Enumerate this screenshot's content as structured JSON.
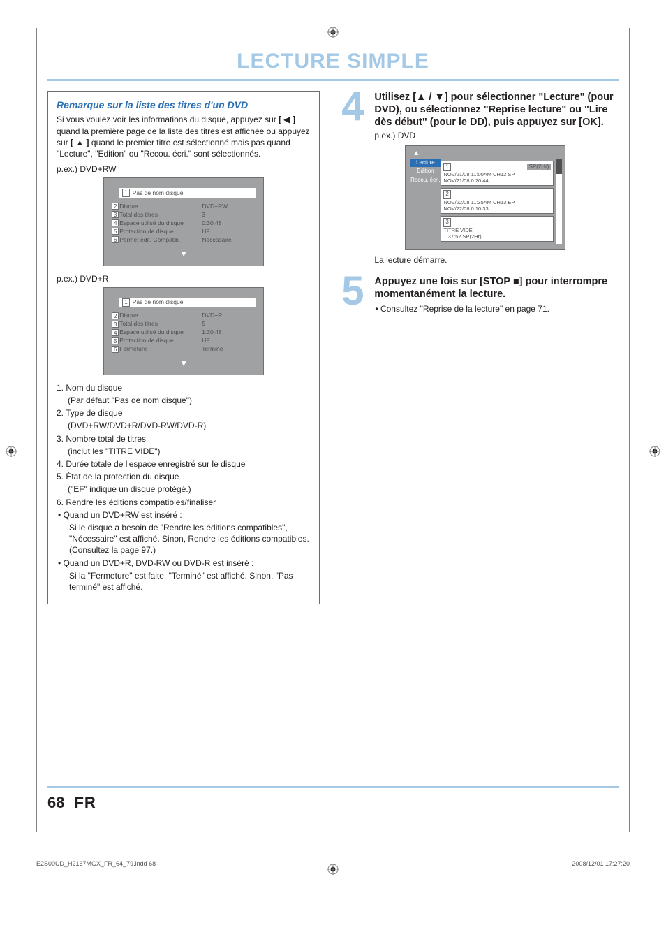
{
  "section_title": "LECTURE SIMPLE",
  "page_number": "68",
  "page_lang": "FR",
  "print_footer_left": "E2S00UD_H2167MGX_FR_64_79.indd   68",
  "print_footer_right": "2008/12/01   17:27:20",
  "colors": {
    "accent": "#a3c9e7",
    "link_blue": "#2a6fb3",
    "panel_bg": "#a0a1a3",
    "panel_text": "#4f5052",
    "rule_grey": "#808285"
  },
  "left": {
    "remark_title": "Remarque sur la liste des titres d'un DVD",
    "remark_body_1": "Si vous voulez voir les informations du disque, appuyez sur ",
    "remark_btn_left": "[ ◀ ]",
    "remark_body_2": " quand la première page de la liste des titres est affichée ou appuyez sur ",
    "remark_btn_up": "[ ▲ ]",
    "remark_body_3": " quand le premier titre est sélectionné mais pas quand \"Lecture\", \"Edition\" ou \"Recou. écri.\" sont sélectionnés.",
    "ex1_label": "p.ex.) DVD+RW",
    "ex2_label": "p.ex.) DVD+R",
    "panel_titlebar_num": "1",
    "panel_titlebar_text": "Pas de nom disque",
    "panel1_rows": [
      {
        "n": "2",
        "label": "Disque",
        "value": "DVD+RW"
      },
      {
        "n": "3",
        "label": "Total des titres",
        "value": "3"
      },
      {
        "n": "4",
        "label": "Espace utilisé du disque",
        "value": "0:30:48"
      },
      {
        "n": "5",
        "label": "Protection de disque",
        "value": "HF"
      },
      {
        "n": "6",
        "label": "Permet édit. Compatib.",
        "value": "Nécessaire"
      }
    ],
    "panel2_rows": [
      {
        "n": "2",
        "label": "Disque",
        "value": "DVD+R"
      },
      {
        "n": "3",
        "label": "Total des titres",
        "value": "5"
      },
      {
        "n": "4",
        "label": "Espace utilisé du disque",
        "value": "1:30:48"
      },
      {
        "n": "5",
        "label": "Protection de disque",
        "value": "HF"
      },
      {
        "n": "6",
        "label": "Fermeture",
        "value": "Terminé"
      }
    ],
    "expl": {
      "i1": "1. Nom du disque",
      "i1s": "(Par défaut \"Pas de nom disque\")",
      "i2": "2. Type de disque",
      "i2s": "(DVD+RW/DVD+R/DVD-RW/DVD-R)",
      "i3": "3. Nombre total de titres",
      "i3s": "(inclut les \"TITRE VIDE\")",
      "i4": "4. Durée totale de l'espace enregistré sur le disque",
      "i5": "5. État de la protection du disque",
      "i5s": "(\"EF\" indique un disque protégé.)",
      "i6": "6. Rendre les éditions compatibles/finaliser",
      "i6b1": "Quand un DVD+RW est inséré :",
      "i6b1s": "Si le disque a besoin de \"Rendre les éditions compatibles\", \"Nécessaire\" est affiché. Sinon, Rendre les éditions compatibles. (Consultez la page 97.)",
      "i6b2": "Quand un DVD+R, DVD-RW ou DVD-R est inséré :",
      "i6b2s": "Si la \"Fermeture\" est faite, \"Terminé\" est affiché. Sinon, \"Pas terminé\" est affiché."
    }
  },
  "right": {
    "step4_num": "4",
    "step4_lead": "Utilisez [▲ / ▼] pour sélectionner \"Lecture\" (pour DVD), ou sélectionnez \"Reprise lecture\" ou \"Lire dès début\" (pour le DD), puis appuyez sur [OK].",
    "step4_after": "p.ex.) DVD",
    "dvd_mock": {
      "tabs": [
        "Lecture",
        "Edition",
        "Recou. écri."
      ],
      "entry1": {
        "idx": "1",
        "mode": "SP(2Hr)",
        "l1": "NOV/21/08  11:00AM CH12  SP",
        "l2": "NOV/21/08    0:20:44"
      },
      "entry2": {
        "idx": "2",
        "l1": "NOV/22/08  11:35AM CH13  EP",
        "l2": "NOV/22/08    0:10:33"
      },
      "entry3": {
        "idx": "3",
        "l1": "TITRE VIDE",
        "l2": "1:37:52  SP(2Hr)"
      }
    },
    "step4_tail": "La lecture démarre.",
    "step5_num": "5",
    "step5_lead": "Appuyez une fois sur [STOP ■] pour interrompre momentanément la lecture.",
    "step5_bullet": "Consultez \"Reprise de la lecture\" en page 71."
  }
}
